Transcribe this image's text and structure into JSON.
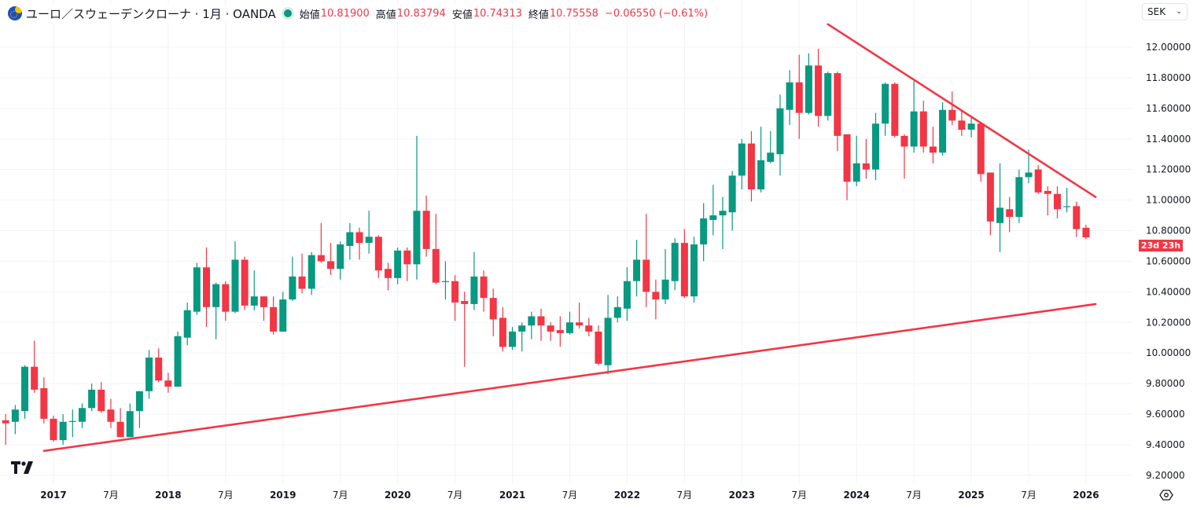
{
  "header": {
    "symbol_title": "ユーロ／スウェーデンクローナ · 1月 · OANDA",
    "market_status_color": "#089981",
    "open_label": "始値",
    "open_value": "10.81900",
    "high_label": "高値",
    "high_value": "10.83794",
    "low_label": "安値",
    "low_value": "10.74313",
    "close_label": "終値",
    "close_value": "10.75558",
    "change": "−0.06550 (−0.61%)"
  },
  "currency_selector": {
    "value": "SEK",
    "icon": "chevron-down-icon"
  },
  "countdown_label": "23d 23h",
  "logo_text": "TV",
  "settings_icon": "settings-icon",
  "colors": {
    "up": "#089981",
    "down": "#f23645",
    "trendline": "#f23645",
    "grid": "#f0f3fa",
    "axis_text": "#131722"
  },
  "chart_data": {
    "type": "candlestick",
    "interval": "1M",
    "y_axis": {
      "range": [
        9.15,
        12.15
      ],
      "ticks": [
        "12.00000",
        "11.80000",
        "11.60000",
        "11.40000",
        "11.20000",
        "11.00000",
        "10.80000",
        "10.60000",
        "10.40000",
        "10.20000",
        "10.00000",
        "9.80000",
        "9.60000",
        "9.40000",
        "9.20000"
      ],
      "side": "right"
    },
    "x_axis": {
      "ticks": [
        {
          "date": "2017-01",
          "label": "2017"
        },
        {
          "date": "2017-07",
          "label": "7月"
        },
        {
          "date": "2018-01",
          "label": "2018"
        },
        {
          "date": "2018-07",
          "label": "7月"
        },
        {
          "date": "2019-01",
          "label": "2019"
        },
        {
          "date": "2019-07",
          "label": "7月"
        },
        {
          "date": "2020-01",
          "label": "2020"
        },
        {
          "date": "2020-07",
          "label": "7月"
        },
        {
          "date": "2021-01",
          "label": "2021"
        },
        {
          "date": "2021-07",
          "label": "7月"
        },
        {
          "date": "2022-01",
          "label": "2022"
        },
        {
          "date": "2022-07",
          "label": "7月"
        },
        {
          "date": "2023-01",
          "label": "2023"
        },
        {
          "date": "2023-07",
          "label": "7月"
        },
        {
          "date": "2024-01",
          "label": "2024"
        },
        {
          "date": "2024-07",
          "label": "7月"
        },
        {
          "date": "2025-01",
          "label": "2025"
        },
        {
          "date": "2025-07",
          "label": "7月"
        },
        {
          "date": "2026-01",
          "label": "2026"
        }
      ]
    },
    "grid": true,
    "candles_fields": [
      "date",
      "open",
      "high",
      "low",
      "close"
    ],
    "candles": [
      [
        "2016-08",
        9.56,
        9.6,
        9.4,
        9.54
      ],
      [
        "2016-09",
        9.55,
        9.66,
        9.47,
        9.63
      ],
      [
        "2016-10",
        9.62,
        9.92,
        9.57,
        9.91
      ],
      [
        "2016-11",
        9.91,
        10.08,
        9.74,
        9.76
      ],
      [
        "2016-12",
        9.77,
        9.84,
        9.54,
        9.57
      ],
      [
        "2017-01",
        9.57,
        9.59,
        9.42,
        9.43
      ],
      [
        "2017-02",
        9.43,
        9.6,
        9.4,
        9.55
      ],
      [
        "2017-03",
        9.55,
        9.63,
        9.45,
        9.555
      ],
      [
        "2017-04",
        9.55,
        9.67,
        9.51,
        9.64
      ],
      [
        "2017-05",
        9.64,
        9.8,
        9.62,
        9.76
      ],
      [
        "2017-06",
        9.76,
        9.81,
        9.61,
        9.62
      ],
      [
        "2017-07",
        9.63,
        9.7,
        9.51,
        9.55
      ],
      [
        "2017-08",
        9.55,
        9.64,
        9.45,
        9.45
      ],
      [
        "2017-09",
        9.45,
        9.67,
        9.45,
        9.62
      ],
      [
        "2017-10",
        9.62,
        9.75,
        9.51,
        9.75
      ],
      [
        "2017-11",
        9.75,
        10.02,
        9.7,
        9.97
      ],
      [
        "2017-12",
        9.97,
        10.03,
        9.81,
        9.82
      ],
      [
        "2018-01",
        9.82,
        9.87,
        9.74,
        9.78
      ],
      [
        "2018-02",
        9.78,
        10.14,
        9.78,
        10.11
      ],
      [
        "2018-03",
        10.1,
        10.33,
        10.05,
        10.28
      ],
      [
        "2018-04",
        10.27,
        10.59,
        10.25,
        10.56
      ],
      [
        "2018-05",
        10.56,
        10.69,
        10.17,
        10.3
      ],
      [
        "2018-06",
        10.3,
        10.46,
        10.09,
        10.45
      ],
      [
        "2018-07",
        10.45,
        10.47,
        10.21,
        10.27
      ],
      [
        "2018-08",
        10.27,
        10.73,
        10.26,
        10.61
      ],
      [
        "2018-09",
        10.61,
        10.63,
        10.28,
        10.31
      ],
      [
        "2018-10",
        10.31,
        10.54,
        10.28,
        10.37
      ],
      [
        "2018-11",
        10.37,
        10.37,
        10.21,
        10.3
      ],
      [
        "2018-12",
        10.3,
        10.37,
        10.12,
        10.14
      ],
      [
        "2019-01",
        10.14,
        10.4,
        10.14,
        10.35
      ],
      [
        "2019-02",
        10.35,
        10.63,
        10.34,
        10.5
      ],
      [
        "2019-03",
        10.5,
        10.65,
        10.39,
        10.42
      ],
      [
        "2019-04",
        10.42,
        10.66,
        10.38,
        10.64
      ],
      [
        "2019-05",
        10.64,
        10.85,
        10.59,
        10.6
      ],
      [
        "2019-06",
        10.6,
        10.72,
        10.51,
        10.55
      ],
      [
        "2019-07",
        10.55,
        10.73,
        10.48,
        10.71
      ],
      [
        "2019-08",
        10.7,
        10.85,
        10.61,
        10.79
      ],
      [
        "2019-09",
        10.79,
        10.82,
        10.61,
        10.72
      ],
      [
        "2019-10",
        10.72,
        10.93,
        10.65,
        10.76
      ],
      [
        "2019-11",
        10.76,
        10.77,
        10.49,
        10.54
      ],
      [
        "2019-12",
        10.55,
        10.59,
        10.41,
        10.49
      ],
      [
        "2020-01",
        10.49,
        10.69,
        10.45,
        10.67
      ],
      [
        "2020-02",
        10.67,
        10.69,
        10.47,
        10.58
      ],
      [
        "2020-03",
        10.58,
        11.42,
        10.48,
        10.93
      ],
      [
        "2020-04",
        10.93,
        11.03,
        10.63,
        10.68
      ],
      [
        "2020-05",
        10.68,
        10.91,
        10.45,
        10.46
      ],
      [
        "2020-06",
        10.47,
        10.6,
        10.35,
        10.47
      ],
      [
        "2020-07",
        10.47,
        10.51,
        10.21,
        10.33
      ],
      [
        "2020-08",
        10.34,
        10.4,
        9.91,
        10.32
      ],
      [
        "2020-09",
        10.32,
        10.66,
        10.28,
        10.5
      ],
      [
        "2020-10",
        10.5,
        10.54,
        10.27,
        10.36
      ],
      [
        "2020-11",
        10.36,
        10.42,
        10.11,
        10.22
      ],
      [
        "2020-12",
        10.23,
        10.3,
        10.01,
        10.04
      ],
      [
        "2021-01",
        10.04,
        10.17,
        10.02,
        10.14
      ],
      [
        "2021-02",
        10.14,
        10.2,
        10.01,
        10.18
      ],
      [
        "2021-03",
        10.18,
        10.27,
        10.09,
        10.24
      ],
      [
        "2021-04",
        10.24,
        10.29,
        10.08,
        10.18
      ],
      [
        "2021-05",
        10.18,
        10.2,
        10.08,
        10.14
      ],
      [
        "2021-06",
        10.15,
        10.24,
        10.04,
        10.13
      ],
      [
        "2021-07",
        10.13,
        10.27,
        10.12,
        10.2
      ],
      [
        "2021-08",
        10.2,
        10.33,
        10.16,
        10.18
      ],
      [
        "2021-09",
        10.18,
        10.23,
        10.11,
        10.14
      ],
      [
        "2021-10",
        10.14,
        10.18,
        9.92,
        9.93
      ],
      [
        "2021-11",
        9.92,
        10.38,
        9.86,
        10.23
      ],
      [
        "2021-12",
        10.23,
        10.37,
        10.2,
        10.3
      ],
      [
        "2022-01",
        10.29,
        10.56,
        10.21,
        10.47
      ],
      [
        "2022-02",
        10.47,
        10.74,
        10.37,
        10.61
      ],
      [
        "2022-03",
        10.61,
        10.91,
        10.3,
        10.4
      ],
      [
        "2022-04",
        10.4,
        10.48,
        10.22,
        10.35
      ],
      [
        "2022-05",
        10.35,
        10.68,
        10.32,
        10.48
      ],
      [
        "2022-06",
        10.47,
        10.75,
        10.41,
        10.72
      ],
      [
        "2022-07",
        10.72,
        10.81,
        10.36,
        10.37
      ],
      [
        "2022-08",
        10.37,
        10.76,
        10.33,
        10.71
      ],
      [
        "2022-09",
        10.71,
        10.98,
        10.6,
        10.88
      ],
      [
        "2022-10",
        10.87,
        11.1,
        10.77,
        10.9
      ],
      [
        "2022-11",
        10.9,
        11.02,
        10.68,
        10.93
      ],
      [
        "2022-12",
        10.92,
        11.19,
        10.8,
        11.16
      ],
      [
        "2023-01",
        11.16,
        11.4,
        11.07,
        11.37
      ],
      [
        "2023-02",
        11.37,
        11.45,
        10.99,
        11.07
      ],
      [
        "2023-03",
        11.07,
        11.48,
        11.05,
        11.26
      ],
      [
        "2023-04",
        11.25,
        11.45,
        11.24,
        11.31
      ],
      [
        "2023-05",
        11.3,
        11.69,
        11.16,
        11.6
      ],
      [
        "2023-06",
        11.59,
        11.85,
        11.49,
        11.77
      ],
      [
        "2023-07",
        11.77,
        11.95,
        11.4,
        11.57
      ],
      [
        "2023-08",
        11.57,
        11.96,
        11.56,
        11.88
      ],
      [
        "2023-09",
        11.88,
        11.99,
        11.48,
        11.55
      ],
      [
        "2023-10",
        11.55,
        11.84,
        11.52,
        11.83
      ],
      [
        "2023-11",
        11.83,
        11.84,
        11.32,
        11.42
      ],
      [
        "2023-12",
        11.43,
        11.43,
        11.0,
        11.12
      ],
      [
        "2024-01",
        11.12,
        11.42,
        11.09,
        11.24
      ],
      [
        "2024-02",
        11.24,
        11.4,
        11.14,
        11.2
      ],
      [
        "2024-03",
        11.2,
        11.57,
        11.13,
        11.5
      ],
      [
        "2024-04",
        11.5,
        11.77,
        11.42,
        11.76
      ],
      [
        "2024-05",
        11.76,
        11.77,
        11.41,
        11.42
      ],
      [
        "2024-06",
        11.42,
        11.43,
        11.14,
        11.35
      ],
      [
        "2024-07",
        11.35,
        11.78,
        11.31,
        11.58
      ],
      [
        "2024-08",
        11.58,
        11.65,
        11.31,
        11.35
      ],
      [
        "2024-09",
        11.35,
        11.48,
        11.24,
        11.31
      ],
      [
        "2024-10",
        11.31,
        11.64,
        11.29,
        11.59
      ],
      [
        "2024-11",
        11.59,
        11.71,
        11.49,
        11.52
      ],
      [
        "2024-12",
        11.52,
        11.58,
        11.42,
        11.46
      ],
      [
        "2025-01",
        11.46,
        11.54,
        11.41,
        11.5
      ],
      [
        "2025-02",
        11.5,
        11.51,
        11.12,
        11.17
      ],
      [
        "2025-03",
        11.18,
        11.18,
        10.77,
        10.86
      ],
      [
        "2025-04",
        10.85,
        11.24,
        10.66,
        10.95
      ],
      [
        "2025-05",
        10.94,
        11.02,
        10.79,
        10.89
      ],
      [
        "2025-06",
        10.89,
        11.2,
        10.85,
        11.15
      ],
      [
        "2025-07",
        11.15,
        11.33,
        11.11,
        11.18
      ],
      [
        "2025-08",
        11.2,
        11.23,
        11.04,
        11.05
      ],
      [
        "2025-09",
        11.06,
        11.09,
        10.9,
        11.04
      ],
      [
        "2025-10",
        11.04,
        11.09,
        10.88,
        10.94
      ],
      [
        "2025-11",
        10.955,
        11.08,
        10.92,
        10.96
      ],
      [
        "2025-12",
        10.96,
        10.99,
        10.76,
        10.81
      ],
      [
        "2026-01",
        10.819,
        10.838,
        10.743,
        10.756
      ]
    ],
    "trendlines": [
      {
        "from": [
          "2023-10",
          12.15
        ],
        "to": [
          "2026-02",
          11.02
        ]
      },
      {
        "from": [
          "2016-12",
          9.36
        ],
        "to": [
          "2026-02",
          10.32
        ]
      }
    ]
  }
}
